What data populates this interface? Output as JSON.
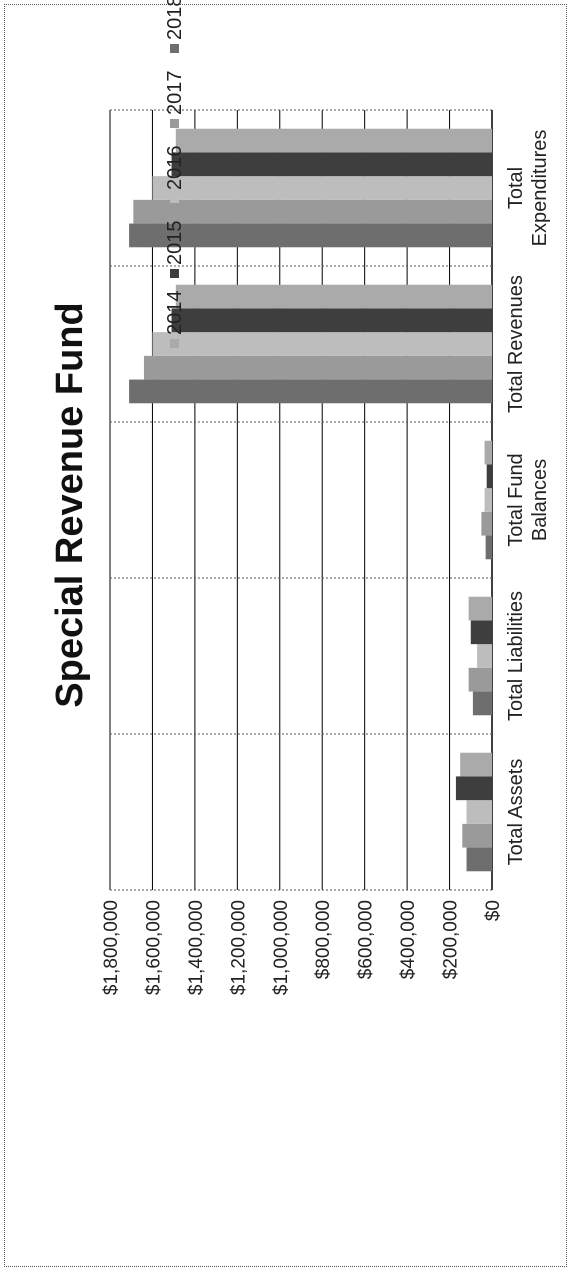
{
  "chart_data": {
    "type": "bar",
    "title": "Special Revenue Fund",
    "xlabel": "",
    "ylabel": "",
    "categories": [
      "Total Assets",
      "Total Liabilities",
      "Total Fund Balances",
      "Total Revenues",
      "Total Expenditures"
    ],
    "category_lines": [
      [
        "Total Assets"
      ],
      [
        "Total Liabilities"
      ],
      [
        "Total Fund",
        "Balances"
      ],
      [
        "Total Revenues"
      ],
      [
        "Total",
        "Expenditures"
      ]
    ],
    "series": [
      {
        "name": "2018",
        "color": "#6e6e6e",
        "values": [
          120000,
          90000,
          30000,
          1710000,
          1710000
        ]
      },
      {
        "name": "2017",
        "color": "#9a9a9a",
        "values": [
          140000,
          110000,
          50000,
          1640000,
          1690000
        ]
      },
      {
        "name": "2016",
        "color": "#bdbdbd",
        "values": [
          120000,
          70000,
          35000,
          1600000,
          1600000
        ]
      },
      {
        "name": "2015",
        "color": "#3e3e3e",
        "values": [
          170000,
          100000,
          25000,
          1510000,
          1510000
        ]
      },
      {
        "name": "2014",
        "color": "#aaaaaa",
        "values": [
          150000,
          110000,
          35000,
          1490000,
          1490000
        ]
      }
    ],
    "ylim": [
      0,
      1800000
    ],
    "yticks": [
      {
        "value": 0,
        "label": "$0"
      },
      {
        "value": 200000,
        "label": "$200,000"
      },
      {
        "value": 400000,
        "label": "$400,000"
      },
      {
        "value": 600000,
        "label": "$600,000"
      },
      {
        "value": 800000,
        "label": "$800,000"
      },
      {
        "value": 1000000,
        "label": "$1,000,000"
      },
      {
        "value": 1200000,
        "label": "$1,200,000"
      },
      {
        "value": 1400000,
        "label": "$1,400,000"
      },
      {
        "value": 1600000,
        "label": "$1,600,000"
      },
      {
        "value": 1800000,
        "label": "$1,800,000"
      }
    ],
    "legend": [
      "2018",
      "2017",
      "2016",
      "2015",
      "2014"
    ],
    "legend_position": "top",
    "grid": true,
    "orientation": "rotated-90"
  }
}
